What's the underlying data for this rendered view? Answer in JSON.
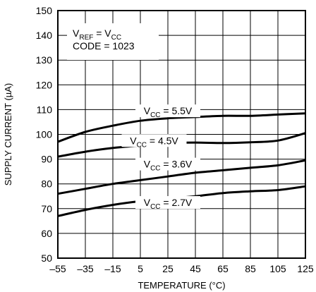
{
  "chart_data": {
    "type": "line",
    "xlabel": "TEMPERATURE (°C)",
    "ylabel": "SUPPLY CURRENT (µA)",
    "xlim": [
      -55,
      125
    ],
    "ylim": [
      50,
      150
    ],
    "xticks": [
      -55,
      -35,
      -15,
      5,
      25,
      45,
      65,
      85,
      105,
      125
    ],
    "yticks": [
      50,
      60,
      70,
      80,
      90,
      100,
      110,
      120,
      130,
      140,
      150
    ],
    "grid": true,
    "conditions": {
      "line1": {
        "v": "V",
        "v_sub": "REF",
        "eq": " = V",
        "eq_sub": "CC"
      },
      "line2": "CODE = 1023"
    },
    "series": [
      {
        "name": "VCC = 5.5V",
        "label_main": "V",
        "label_sub": "CC",
        "label_rest": " = 5.5V",
        "x": [
          -55,
          -35,
          -15,
          5,
          25,
          45,
          65,
          85,
          105,
          125
        ],
        "y": [
          97,
          101,
          103.5,
          105.5,
          106.5,
          107,
          107.5,
          107.5,
          108,
          108.5
        ]
      },
      {
        "name": "VCC = 4.5V",
        "label_main": "V",
        "label_sub": "CC",
        "label_rest": " = 4.5V",
        "x": [
          -55,
          -35,
          -15,
          5,
          25,
          45,
          65,
          85,
          105,
          125
        ],
        "y": [
          91,
          93,
          94.5,
          95.5,
          96.5,
          96.7,
          96.5,
          96.8,
          97.5,
          100.5
        ]
      },
      {
        "name": "VCC = 3.6V",
        "label_main": "V",
        "label_sub": "CC",
        "label_rest": " = 3.6V",
        "x": [
          -55,
          -35,
          -15,
          5,
          25,
          45,
          65,
          85,
          105,
          125
        ],
        "y": [
          76,
          78,
          80,
          81.5,
          83,
          84.5,
          85.5,
          86.5,
          87.5,
          89.5
        ]
      },
      {
        "name": "VCC = 2.7V",
        "label_main": "V",
        "label_sub": "CC",
        "label_rest": " = 2.7V",
        "x": [
          -55,
          -35,
          -15,
          5,
          25,
          45,
          65,
          85,
          105,
          125
        ],
        "y": [
          67,
          69.5,
          71.5,
          73,
          74,
          75,
          76.3,
          77,
          77.5,
          79
        ]
      }
    ]
  }
}
